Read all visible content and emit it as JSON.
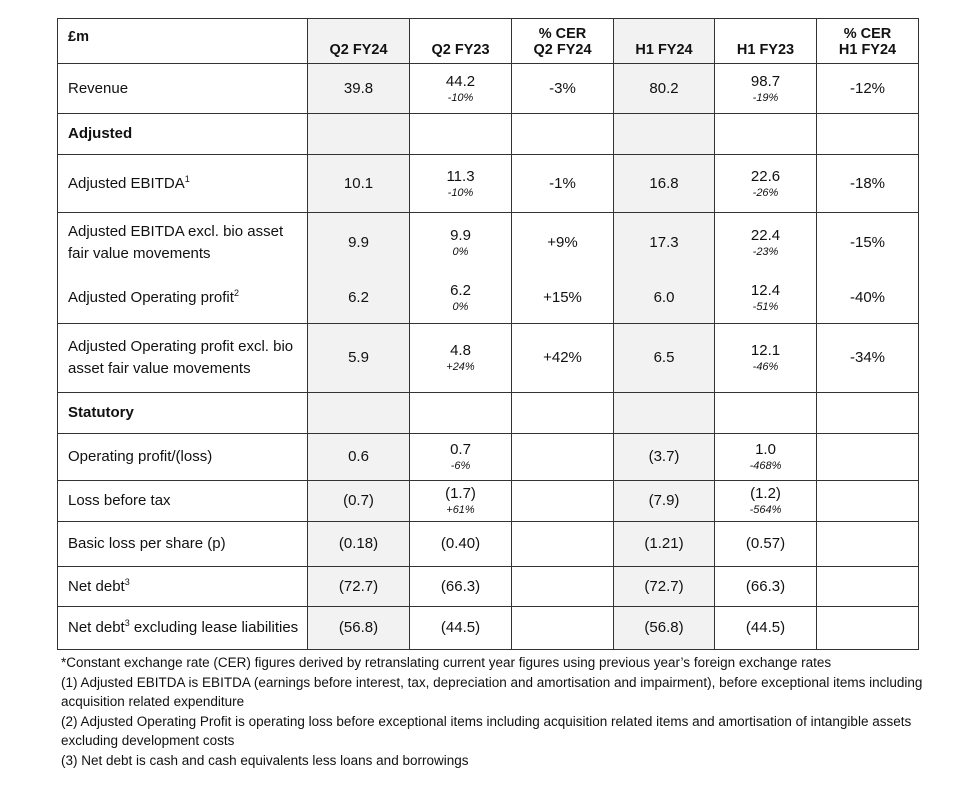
{
  "table": {
    "headers": [
      "£m",
      "Q2 FY24",
      "Q2 FY23",
      "% CER\nQ2 FY24",
      "H1 FY24",
      "H1 FY23",
      "% CER\nH1 FY24"
    ],
    "header_lines": {
      "cer_q2_l1": "% CER",
      "cer_q2_l2": "Q2 FY24",
      "cer_h1_l1": "% CER",
      "cer_h1_l2": "H1 FY24"
    },
    "rows": [
      {
        "label": "Revenue",
        "q2fy24": "39.8",
        "q2fy23": "44.2",
        "q2fy23_chg": "-10%",
        "cer_q2": "-3%",
        "h1fy24": "80.2",
        "h1fy23": "98.7",
        "h1fy23_chg": "-19%",
        "cer_h1": "-12%"
      },
      {
        "label": "Adjusted"
      },
      {
        "label": "Adjusted EBITDA",
        "sup": "1",
        "q2fy24": "10.1",
        "q2fy23": "11.3",
        "q2fy23_chg": "-10%",
        "cer_q2": "-1%",
        "h1fy24": "16.8",
        "h1fy23": "22.6",
        "h1fy23_chg": "-26%",
        "cer_h1": "-18%"
      },
      {
        "label": "Adjusted EBITDA excl. bio asset fair value movements",
        "q2fy24": "9.9",
        "q2fy23": "9.9",
        "q2fy23_chg": "0%",
        "cer_q2": "+9%",
        "h1fy24": "17.3",
        "h1fy23": "22.4",
        "h1fy23_chg": "-23%",
        "cer_h1": "-15%"
      },
      {
        "label": "Adjusted Operating profit",
        "sup": "2",
        "q2fy24": "6.2",
        "q2fy23": "6.2",
        "q2fy23_chg": "0%",
        "cer_q2": "+15%",
        "h1fy24": "6.0",
        "h1fy23": "12.4",
        "h1fy23_chg": "-51%",
        "cer_h1": "-40%"
      },
      {
        "label": "Adjusted Operating profit excl. bio asset fair value movements",
        "q2fy24": "5.9",
        "q2fy23": "4.8",
        "q2fy23_chg": "+24%",
        "cer_q2": "+42%",
        "h1fy24": "6.5",
        "h1fy23": "12.1",
        "h1fy23_chg": "-46%",
        "cer_h1": "-34%"
      },
      {
        "label": "Statutory"
      },
      {
        "label": "Operating profit/(loss)",
        "q2fy24": "0.6",
        "q2fy23": "0.7",
        "q2fy23_chg": "-6%",
        "h1fy24": "(3.7)",
        "h1fy23": "1.0",
        "h1fy23_chg": "-468%"
      },
      {
        "label": "Loss before tax",
        "q2fy24": "(0.7)",
        "q2fy23": "(1.7)",
        "q2fy23_chg": "+61%",
        "h1fy24": "(7.9)",
        "h1fy23": "(1.2)",
        "h1fy23_chg": "-564%"
      },
      {
        "label": "Basic loss per share (p)",
        "q2fy24": "(0.18)",
        "q2fy23": "(0.40)",
        "h1fy24": "(1.21)",
        "h1fy23": "(0.57)"
      },
      {
        "label": "Net debt",
        "sup": "3",
        "q2fy24": "(72.7)",
        "q2fy23": "(66.3)",
        "h1fy24": "(72.7)",
        "h1fy23": "(66.3)"
      },
      {
        "label": "Net debt",
        "sup": "3",
        "label_rest": " excluding lease liabilities",
        "q2fy24": "(56.8)",
        "q2fy23": "(44.5)",
        "h1fy24": "(56.8)",
        "h1fy23": "(44.5)"
      }
    ]
  },
  "footnotes": [
    "*Constant exchange rate (CER) figures derived by retranslating current year figures using previous year’s foreign exchange rates",
    "(1) Adjusted EBITDA is EBITDA (earnings before interest, tax, depreciation and amortisation and impairment), before exceptional items including acquisition related expenditure",
    "(2) Adjusted Operating Profit is operating loss before exceptional items including acquisition related items and amortisation of intangible assets excluding development costs",
    "(3) Net debt is cash and cash equivalents less loans and borrowings"
  ]
}
